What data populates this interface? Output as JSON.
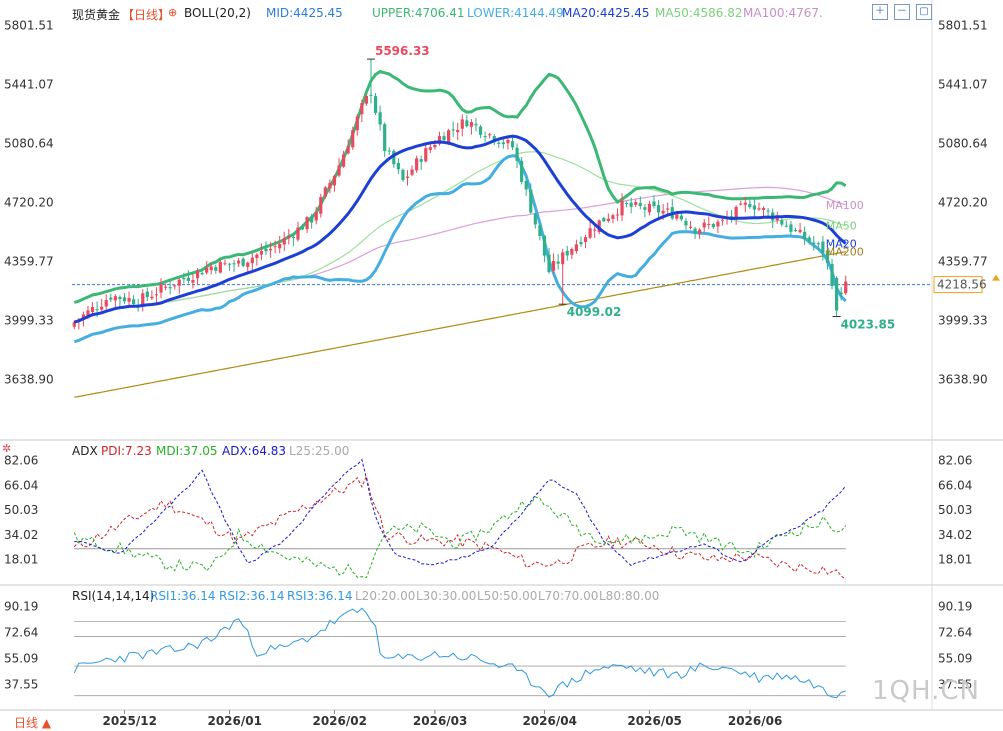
{
  "header": {
    "instrument": "现货黄金",
    "period": "【日线】",
    "indicator": "BOLL(20,2)",
    "mid": "MID:4425.45",
    "upper": "UPPER:4706.41",
    "lower": "LOWER:4144.49",
    "ma20": "MA20:4425.45",
    "ma50": "MA50:4586.82",
    "ma100": "MA100:4767."
  },
  "adx_header": {
    "name": "ADX",
    "pdi": "PDI:7.23",
    "mdi": "MDI:37.05",
    "adx": "ADX:64.83",
    "l25": "L25:25.00"
  },
  "rsi_header": {
    "name": "RSI(14,14,14)",
    "rsi1": "RSI1:36.14",
    "rsi2": "RSI2:36.14",
    "rsi3": "RSI3:36.14",
    "l20": "L20:20.00",
    "l30": "L30:30.00",
    "l50": "L50:50.00",
    "l70": "L70:70.00",
    "l80": "L80:80.00"
  },
  "bottom": {
    "period_label": "日线 ▲",
    "watermark": "1QH.CN"
  },
  "colors": {
    "up": "#e84a5f",
    "down": "#2fb08a",
    "mid": "#1c3fd6",
    "upper": "#3bb874",
    "lower": "#45aee0",
    "ma50": "#9fdf9f",
    "ma100": "#d8a0d8",
    "ma200": "#b08c16",
    "pdi": "#d0242a",
    "mdi": "#26b026",
    "adx": "#1a1ac8",
    "l25": "#9a9a9a",
    "rsi": "#3399dd",
    "current": "#f0a020"
  },
  "chart_data": [
    {
      "type": "candlestick",
      "title": "现货黄金【日线】",
      "y_ticks": [
        5801.51,
        5441.07,
        5080.64,
        4720.2,
        4359.77,
        3999.33,
        3638.9
      ],
      "ylim": [
        3420,
        5850
      ],
      "x_labels": [
        "2025/12",
        "2026/01",
        "2026/02",
        "2026/03",
        "2026/04",
        "2026/05",
        "2026/06"
      ],
      "x_label_index": [
        11,
        34,
        57,
        79,
        103,
        126,
        148
      ],
      "annotations": [
        {
          "text": "5596.33",
          "index": 65,
          "value": 5596.33,
          "side": "high"
        },
        {
          "text": "4099.02",
          "index": 107,
          "value": 4099.02,
          "side": "low"
        },
        {
          "text": "4023.85",
          "index": 167,
          "value": 4023.85,
          "side": "low"
        }
      ],
      "current_price": "4218.56",
      "series_labels": [
        "MA100",
        "MA50",
        "MA200",
        "MA20"
      ],
      "candles_note": "daily OHLC"
    },
    {
      "type": "line",
      "title": "ADX",
      "y_ticks": [
        82.06,
        66.04,
        50.03,
        34.02,
        18.01
      ],
      "ylim": [
        10,
        88
      ],
      "series": [
        {
          "name": "PDI",
          "last": 7.23
        },
        {
          "name": "MDI",
          "last": 37.05
        },
        {
          "name": "ADX",
          "last": 64.83
        },
        {
          "name": "L25",
          "last": 25.0
        }
      ]
    },
    {
      "type": "line",
      "title": "RSI(14,14,14)",
      "y_ticks": [
        90.19,
        72.64,
        55.09,
        37.55
      ],
      "ylim": [
        25,
        96
      ],
      "series": [
        {
          "name": "RSI1",
          "last": 36.14
        },
        {
          "name": "L20",
          "last": 20.0
        }
      ]
    }
  ]
}
